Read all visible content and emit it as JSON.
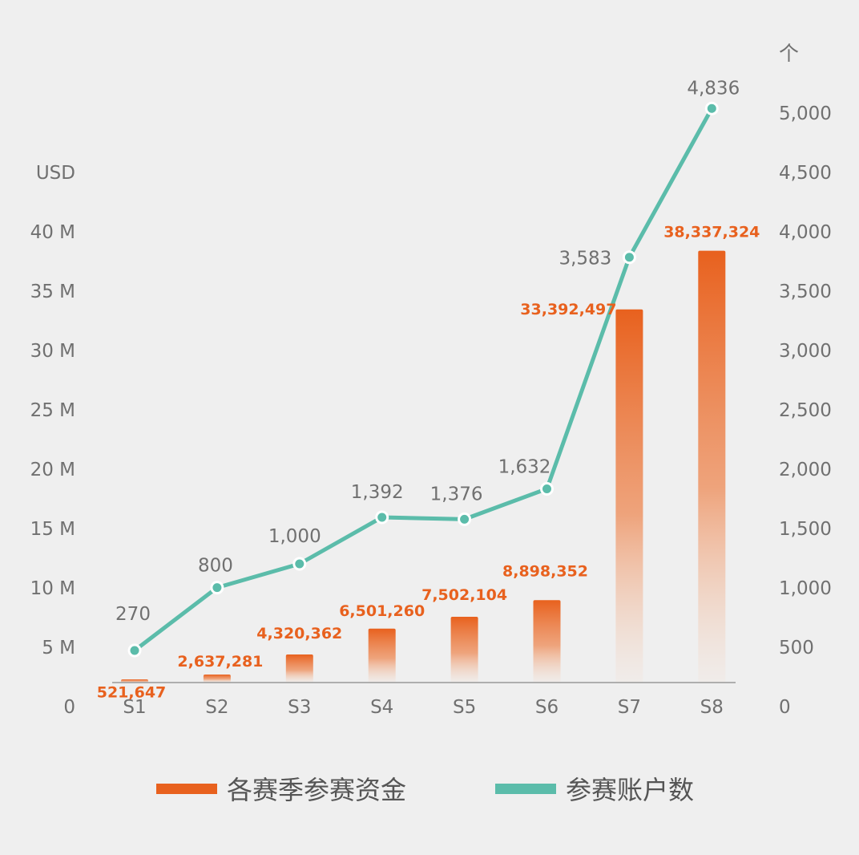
{
  "chart_data": {
    "type": "bar+line",
    "categories": [
      "S1",
      "S2",
      "S3",
      "S4",
      "S5",
      "S6",
      "S7",
      "S8"
    ],
    "left_axis": {
      "unit": "USD",
      "ticks": [
        0,
        5000000,
        10000000,
        15000000,
        20000000,
        25000000,
        30000000,
        35000000,
        40000000
      ],
      "tick_labels": [
        "0",
        "5 M",
        "10 M",
        "15 M",
        "20 M",
        "25 M",
        "30 M",
        "35 M",
        "40 M"
      ],
      "max": 45000000
    },
    "right_axis": {
      "unit": "个",
      "ticks": [
        0,
        500,
        1000,
        1500,
        2000,
        2500,
        3000,
        3500,
        4000,
        4500,
        5000
      ],
      "tick_labels": [
        "0",
        "500",
        "1,000",
        "1,500",
        "2,000",
        "2,500",
        "3,000",
        "3,500",
        "4,000",
        "4,500",
        "5,000"
      ],
      "max": 5000
    },
    "series": [
      {
        "name": "各赛季参赛资金",
        "type": "bar",
        "axis": "left",
        "color": "#e8611e",
        "values": [
          521647,
          2637281,
          4320362,
          6501260,
          7502104,
          8898352,
          33392497,
          38337324
        ],
        "labels": [
          "521,647",
          "2,637,281",
          "4,320,362",
          "6,501,260",
          "7,502,104",
          "8,898,352",
          "33,392,497",
          "38,337,324"
        ]
      },
      {
        "name": "参赛账户数",
        "type": "line",
        "axis": "right",
        "color": "#5bbcaa",
        "values": [
          270,
          800,
          1000,
          1392,
          1376,
          1632,
          3583,
          4836
        ],
        "labels": [
          "270",
          "800",
          "1,000",
          "1,392",
          "1,376",
          "1,632",
          "3,583",
          "4,836"
        ]
      }
    ],
    "grid": false,
    "legend": "bottom"
  }
}
